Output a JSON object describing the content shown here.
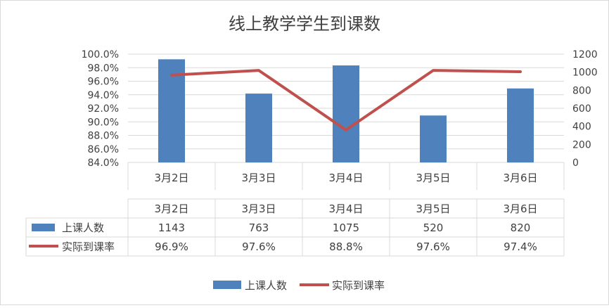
{
  "chart_data": {
    "type": "bar",
    "title": "线上教学学生到课数",
    "categories": [
      "3月2日",
      "3月3日",
      "3月4日",
      "3月5日",
      "3月6日"
    ],
    "series": [
      {
        "name": "上课人数",
        "type": "bar",
        "axis": "right",
        "values": [
          1143,
          763,
          1075,
          520,
          820
        ],
        "labels": [
          "1143",
          "763",
          "1075",
          "520",
          "820"
        ],
        "color": "#4F81BD"
      },
      {
        "name": "实际到课率",
        "type": "line",
        "axis": "left",
        "values": [
          96.9,
          97.6,
          88.8,
          97.6,
          97.4
        ],
        "labels": [
          "96.9%",
          "97.6%",
          "88.8%",
          "97.6%",
          "97.4%"
        ],
        "color": "#C0504D"
      }
    ],
    "y_left": {
      "min": 84.0,
      "max": 100.0,
      "ticks": [
        "84.0%",
        "86.0%",
        "88.0%",
        "90.0%",
        "92.0%",
        "94.0%",
        "96.0%",
        "98.0%",
        "100.0%"
      ]
    },
    "y_right": {
      "min": 0,
      "max": 1200,
      "ticks": [
        "0",
        "200",
        "400",
        "600",
        "800",
        "1000",
        "1200"
      ]
    },
    "grid": true,
    "data_table": true,
    "legend": "bottom"
  },
  "colors": {
    "bar": "#4F81BD",
    "line": "#C0504D",
    "grid": "#D9D9D9",
    "text": "#404040"
  }
}
